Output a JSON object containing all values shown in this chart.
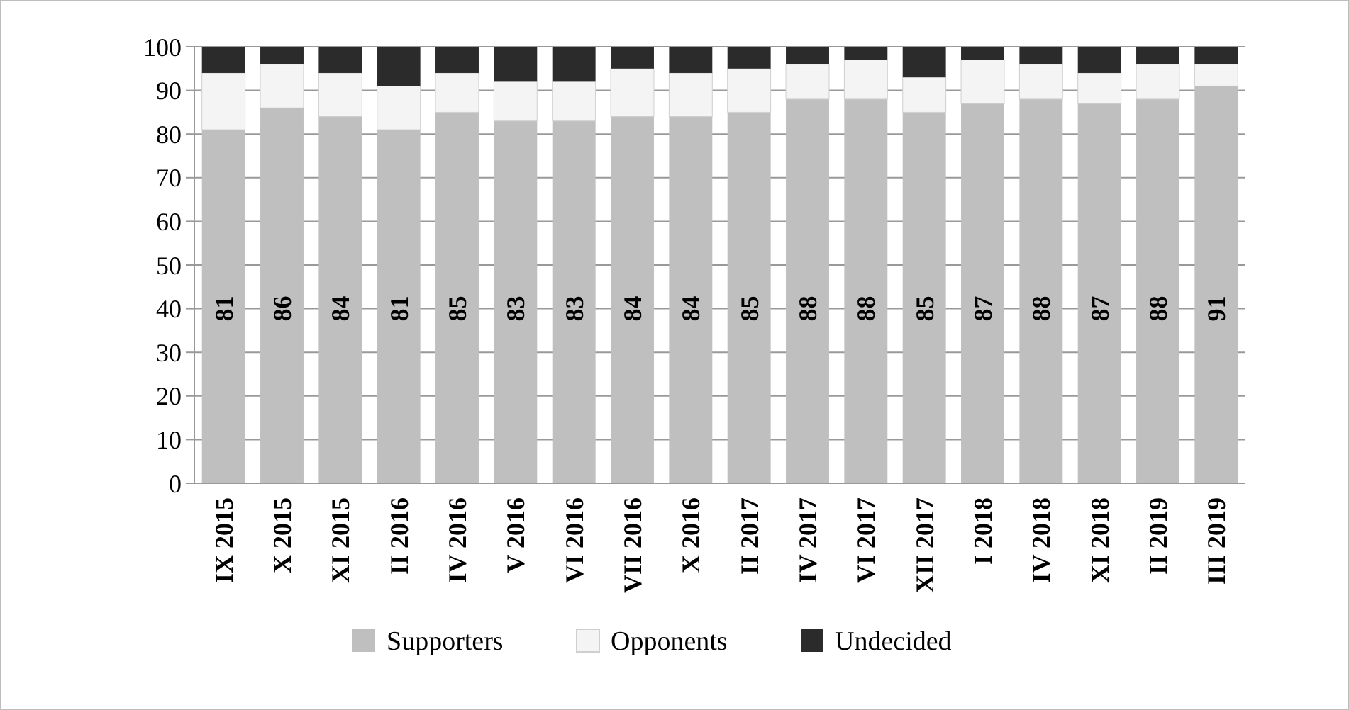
{
  "chart_data": {
    "type": "bar",
    "stacked": true,
    "categories": [
      "IX 2015",
      "X 2015",
      "XI 2015",
      "II 2016",
      "IV 2016",
      "V 2016",
      "VI 2016",
      "VII 2016",
      "X 2016",
      "II 2017",
      "IV 2017",
      "VI 2017",
      "XII 2017",
      "I 2018",
      "IV 2018",
      "XI 2018",
      "II 2019",
      "III 2019"
    ],
    "series": [
      {
        "name": "Supporters",
        "color": "#bfbfbf",
        "values": [
          81,
          86,
          84,
          81,
          85,
          83,
          83,
          84,
          84,
          85,
          88,
          88,
          85,
          87,
          88,
          87,
          88,
          91
        ],
        "value_labels": [
          "81",
          "86",
          "84",
          "81",
          "85",
          "83",
          "83",
          "84",
          "84",
          "85",
          "88",
          "88",
          "85",
          "87",
          "88",
          "87",
          "88",
          "91"
        ]
      },
      {
        "name": "Opponents",
        "color": "#f4f4f4",
        "values": [
          13,
          10,
          10,
          10,
          9,
          9,
          9,
          11,
          10,
          10,
          8,
          9,
          8,
          10,
          8,
          7,
          8,
          5
        ]
      },
      {
        "name": "Undecided",
        "color": "#2b2b2b",
        "values": [
          6,
          4,
          6,
          9,
          6,
          8,
          8,
          5,
          6,
          5,
          4,
          3,
          7,
          3,
          4,
          6,
          4,
          4
        ]
      }
    ],
    "ylim": [
      0,
      100
    ],
    "yticks": [
      0,
      10,
      20,
      30,
      40,
      50,
      60,
      70,
      80,
      90,
      100
    ],
    "grid": "y",
    "legend": "bottom"
  }
}
